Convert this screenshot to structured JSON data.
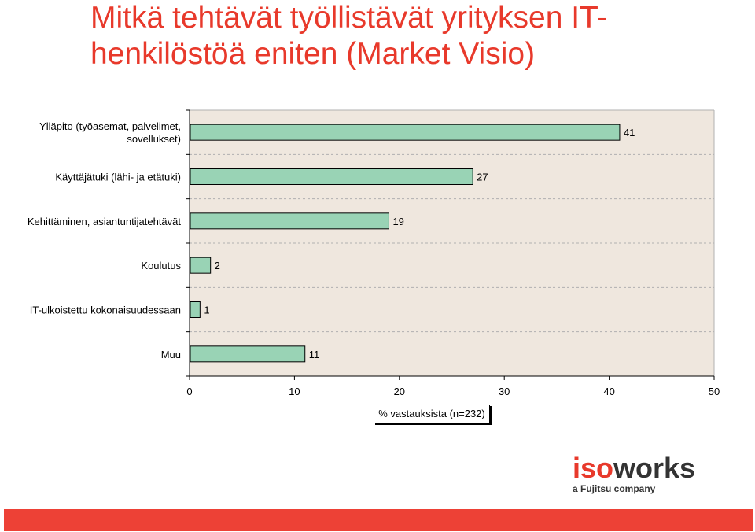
{
  "title": "Mitkä tehtävät työllistävät yrityksen IT-henkilöstöä eniten (Market Visio)",
  "chart_data": {
    "type": "bar",
    "orientation": "horizontal",
    "categories": [
      [
        "Ylläpito (työasemat, palvelimet,",
        "sovellukset)"
      ],
      [
        "Käyttäjätuki (lähi- ja etätuki)"
      ],
      [
        "Kehittäminen, asiantuntijatehtävät"
      ],
      [
        "Koulutus"
      ],
      [
        "IT-ulkoistettu kokonaisuudessaan"
      ],
      [
        "Muu"
      ]
    ],
    "values": [
      41,
      27,
      19,
      2,
      1,
      11
    ],
    "xlabel": "% vastauksista (n=232)",
    "xlim": [
      0,
      50
    ],
    "xticks": [
      0,
      10,
      20,
      30,
      40,
      50
    ],
    "grid": "horizontal-dashed",
    "colors": {
      "bar": "#99d3b5",
      "plot_bg": "#efe7de",
      "grid": "#b0b0b0"
    }
  },
  "logo": {
    "iso": "iso",
    "works": "works",
    "sub": "a Fujitsu company"
  },
  "colors": {
    "title": "#e8392b",
    "bottom_bar": "#ed4136"
  }
}
